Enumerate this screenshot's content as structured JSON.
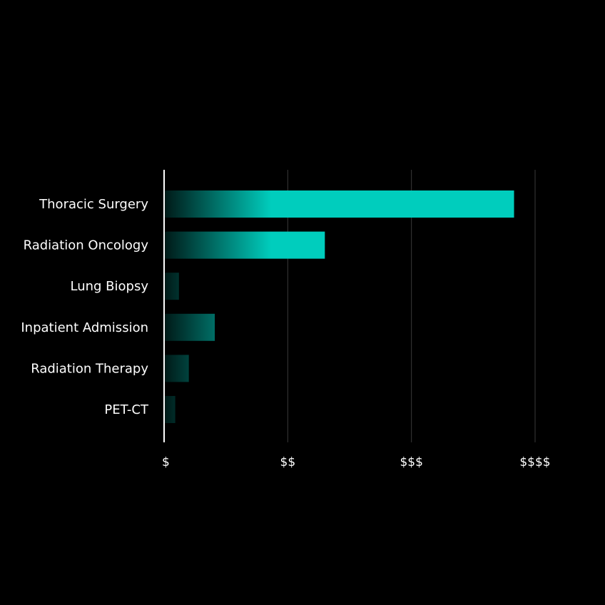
{
  "colors": {
    "background": "#000000",
    "bar": "#00CDBD",
    "gridline": "#3a3a3a",
    "axis": "#ffffff",
    "text": "#ffffff"
  },
  "chart_data": {
    "type": "bar",
    "orientation": "horizontal",
    "title": "",
    "xlabel": "",
    "ylabel": "",
    "categories": [
      "Thoracic Surgery",
      "Radiation Oncology",
      "Lung Biopsy",
      "Inpatient Admission",
      "Radiation Therapy",
      "PET-CT"
    ],
    "values": [
      2.83,
      1.3,
      0.12,
      0.41,
      0.2,
      0.09
    ],
    "xlim": [
      0,
      3
    ],
    "x_ticks": [
      0,
      1,
      2,
      3
    ],
    "x_tick_labels": [
      "$",
      "$$",
      "$$$",
      "$$$$"
    ],
    "grid": true
  }
}
